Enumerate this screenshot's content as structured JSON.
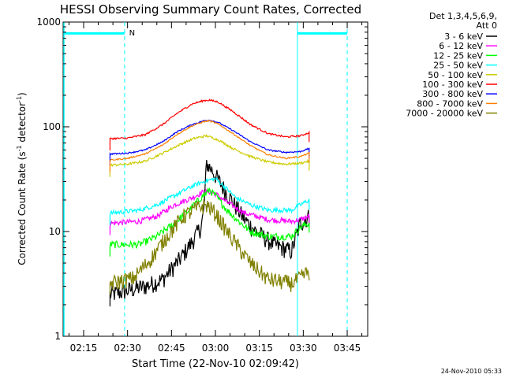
{
  "chart_data": {
    "type": "line",
    "title": "HESSI Observing Summary Count Rates, Corrected",
    "xlabel": "Start Time (22-Nov-10 02:09:42)",
    "ylabel_parts": [
      "Corrected Count Rate (s",
      "-1",
      " detector",
      "-1",
      ")"
    ],
    "y_scale": "log",
    "ylim": [
      1,
      1000
    ],
    "xlim_minutes": [
      "02:08:00",
      "03:52:00"
    ],
    "y_ticks": [
      {
        "value": 1,
        "label": "1"
      },
      {
        "value": 10,
        "label": "10"
      },
      {
        "value": 100,
        "label": "100"
      },
      {
        "value": 1000,
        "label": "1000"
      }
    ],
    "x_ticks": [
      {
        "time": "02:15",
        "label": "02:15"
      },
      {
        "time": "02:30",
        "label": "02:30"
      },
      {
        "time": "02:45",
        "label": "02:45"
      },
      {
        "time": "03:00",
        "label": "03:00"
      },
      {
        "time": "03:15",
        "label": "03:15"
      },
      {
        "time": "03:30",
        "label": "03:30"
      },
      {
        "time": "03:45",
        "label": "03:45"
      }
    ],
    "legend_header": [
      "Det 1,3,4,5,6,9,",
      "Att 0"
    ],
    "legend_position": "right",
    "series": [
      {
        "name": "3 - 6 keV",
        "color": "#000000",
        "noise": 0.2,
        "points": [
          [
            "02:24",
            2.5
          ],
          [
            "02:36",
            3.0
          ],
          [
            "02:42",
            3.5
          ],
          [
            "02:48",
            5.5
          ],
          [
            "02:52",
            8.0
          ],
          [
            "02:55",
            11
          ],
          [
            "02:56",
            15
          ],
          [
            "02:57",
            45
          ],
          [
            "02:59",
            38
          ],
          [
            "03:02",
            28
          ],
          [
            "03:06",
            19
          ],
          [
            "03:10",
            13
          ],
          [
            "03:14",
            10
          ],
          [
            "03:20",
            7.5
          ],
          [
            "03:26",
            6.5
          ],
          [
            "03:29",
            12
          ],
          [
            "03:32",
            14
          ]
        ]
      },
      {
        "name": "6 - 12 keV",
        "color": "#ff00ff",
        "noise": 0.06,
        "points": [
          [
            "02:24",
            12
          ],
          [
            "02:34",
            12.5
          ],
          [
            "02:40",
            14
          ],
          [
            "02:46",
            18
          ],
          [
            "02:52",
            21
          ],
          [
            "02:56",
            24
          ],
          [
            "02:58",
            24
          ],
          [
            "03:00",
            23
          ],
          [
            "03:04",
            19
          ],
          [
            "03:10",
            15
          ],
          [
            "03:18",
            13
          ],
          [
            "03:26",
            12.5
          ],
          [
            "03:29",
            13
          ],
          [
            "03:32",
            14
          ]
        ]
      },
      {
        "name": "12 - 25 keV",
        "color": "#00ff00",
        "noise": 0.08,
        "points": [
          [
            "02:24",
            7.5
          ],
          [
            "02:34",
            7.5
          ],
          [
            "02:40",
            9
          ],
          [
            "02:46",
            12
          ],
          [
            "02:51",
            16
          ],
          [
            "02:55",
            21
          ],
          [
            "02:58",
            25
          ],
          [
            "03:00",
            22
          ],
          [
            "03:04",
            16
          ],
          [
            "03:08",
            12.5
          ],
          [
            "03:12",
            10
          ],
          [
            "03:18",
            9
          ],
          [
            "03:26",
            9
          ],
          [
            "03:29",
            11
          ],
          [
            "03:32",
            12
          ]
        ]
      },
      {
        "name": "25 - 50 keV",
        "color": "#00ffff",
        "noise": 0.05,
        "points": [
          [
            "02:24",
            15
          ],
          [
            "02:34",
            16
          ],
          [
            "02:40",
            18
          ],
          [
            "02:46",
            22
          ],
          [
            "02:52",
            27
          ],
          [
            "02:56",
            30
          ],
          [
            "02:58",
            31
          ],
          [
            "03:00",
            32
          ],
          [
            "03:03",
            27
          ],
          [
            "03:07",
            21
          ],
          [
            "03:12",
            18
          ],
          [
            "03:18",
            16
          ],
          [
            "03:26",
            16
          ],
          [
            "03:29",
            18
          ],
          [
            "03:32",
            20
          ]
        ]
      },
      {
        "name": "50 - 100 keV",
        "color": "#cccc00",
        "noise": 0.025,
        "points": [
          [
            "02:24",
            43
          ],
          [
            "02:30",
            44
          ],
          [
            "02:36",
            47
          ],
          [
            "02:42",
            56
          ],
          [
            "02:48",
            68
          ],
          [
            "02:53",
            78
          ],
          [
            "02:57",
            82
          ],
          [
            "03:01",
            75
          ],
          [
            "03:06",
            62
          ],
          [
            "03:12",
            52
          ],
          [
            "03:18",
            46
          ],
          [
            "03:24",
            44
          ],
          [
            "03:29",
            45
          ],
          [
            "03:32",
            47
          ]
        ]
      },
      {
        "name": "100 - 300 keV",
        "color": "#ff0000",
        "noise": 0.02,
        "points": [
          [
            "02:24",
            77
          ],
          [
            "02:30",
            78
          ],
          [
            "02:36",
            84
          ],
          [
            "02:42",
            105
          ],
          [
            "02:47",
            135
          ],
          [
            "02:52",
            165
          ],
          [
            "02:56",
            178
          ],
          [
            "02:58",
            180
          ],
          [
            "03:01",
            172
          ],
          [
            "03:06",
            140
          ],
          [
            "03:12",
            105
          ],
          [
            "03:18",
            86
          ],
          [
            "03:24",
            80
          ],
          [
            "03:29",
            82
          ],
          [
            "03:32",
            88
          ]
        ]
      },
      {
        "name": "300 - 800 keV",
        "color": "#0000ff",
        "noise": 0.015,
        "points": [
          [
            "02:24",
            55
          ],
          [
            "02:30",
            56
          ],
          [
            "02:36",
            60
          ],
          [
            "02:42",
            72
          ],
          [
            "02:47",
            90
          ],
          [
            "02:52",
            105
          ],
          [
            "02:56",
            114
          ],
          [
            "02:58",
            116
          ],
          [
            "03:01",
            110
          ],
          [
            "03:06",
            92
          ],
          [
            "03:12",
            72
          ],
          [
            "03:18",
            60
          ],
          [
            "03:24",
            57
          ],
          [
            "03:29",
            58
          ],
          [
            "03:32",
            62
          ]
        ]
      },
      {
        "name": "800 - 7000 keV",
        "color": "#ff8000",
        "noise": 0.015,
        "points": [
          [
            "02:24",
            48
          ],
          [
            "02:30",
            50
          ],
          [
            "02:36",
            55
          ],
          [
            "02:42",
            67
          ],
          [
            "02:47",
            85
          ],
          [
            "02:52",
            102
          ],
          [
            "02:56",
            112
          ],
          [
            "02:58",
            114
          ],
          [
            "03:01",
            106
          ],
          [
            "03:06",
            86
          ],
          [
            "03:12",
            66
          ],
          [
            "03:18",
            54
          ],
          [
            "03:24",
            50
          ],
          [
            "03:29",
            52
          ],
          [
            "03:32",
            56
          ]
        ]
      },
      {
        "name": "7000 - 20000 keV",
        "color": "#808000",
        "noise": 0.18,
        "points": [
          [
            "02:24",
            3.2
          ],
          [
            "02:32",
            3.6
          ],
          [
            "02:38",
            5.5
          ],
          [
            "02:44",
            9.5
          ],
          [
            "02:49",
            14
          ],
          [
            "02:54",
            17
          ],
          [
            "02:57",
            18
          ],
          [
            "03:00",
            15
          ],
          [
            "03:04",
            10
          ],
          [
            "03:08",
            7
          ],
          [
            "03:12",
            5
          ],
          [
            "03:18",
            3.5
          ],
          [
            "03:26",
            3.2
          ],
          [
            "03:29",
            3.6
          ],
          [
            "03:32",
            4.2
          ]
        ]
      }
    ],
    "night_bars": [
      {
        "start": "02:08",
        "end": "02:29",
        "value": 780
      },
      {
        "start": "03:28",
        "end": "03:45",
        "value": 780
      }
    ],
    "vertical_markers": [
      {
        "time": "02:29",
        "style": "dashed"
      },
      {
        "time": "03:28",
        "style": "solid"
      },
      {
        "time": "03:45",
        "style": "dashed"
      }
    ],
    "marker_label": {
      "time": "02:30",
      "text": "N"
    },
    "marker_color": "#00ffff"
  },
  "footer": {
    "timestamp": "24-Nov-2010 05:33"
  }
}
